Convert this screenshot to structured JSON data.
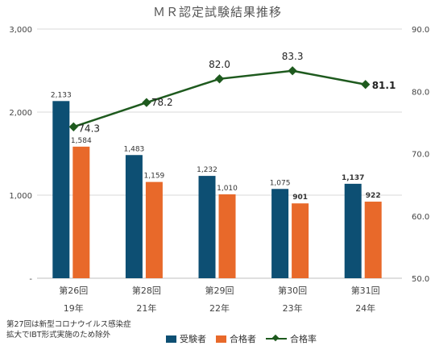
{
  "chart_data": {
    "type": "bar",
    "title": "ＭＲ認定試験結果推移",
    "categories": [
      "第26回",
      "第28回",
      "第29回",
      "第30回",
      "第31回"
    ],
    "years": [
      "19年",
      "21年",
      "22年",
      "23年",
      "24年"
    ],
    "series": [
      {
        "name": "受験者",
        "type": "bar",
        "axis": "left",
        "color": "#0d4f73",
        "values": [
          2133,
          1483,
          1232,
          1075,
          1137
        ],
        "labels": [
          "2,133",
          "1,483",
          "1,232",
          "1,075",
          "1,137"
        ],
        "bold": [
          false,
          false,
          false,
          false,
          true
        ]
      },
      {
        "name": "合格者",
        "type": "bar",
        "axis": "left",
        "color": "#e8692a",
        "values": [
          1584,
          1159,
          1010,
          901,
          922
        ],
        "labels": [
          "1,584",
          "1,159",
          "1,010",
          "901",
          "922"
        ],
        "bold": [
          false,
          false,
          false,
          true,
          true
        ]
      },
      {
        "name": "合格率",
        "type": "line",
        "axis": "right",
        "color": "#1e5a1e",
        "values": [
          74.3,
          78.2,
          82.0,
          83.3,
          81.1
        ],
        "labels": [
          "74.3",
          "78.2",
          "82.0",
          "83.3",
          "81.1"
        ],
        "bold": [
          false,
          false,
          false,
          false,
          true
        ]
      }
    ],
    "y_left": {
      "lim": [
        0,
        3000
      ],
      "ticks": [
        0,
        1000,
        2000,
        3000
      ],
      "tick_labels": [
        "-",
        "1,000",
        "2,000",
        "3,000"
      ]
    },
    "y_right": {
      "lim": [
        50,
        90
      ],
      "ticks": [
        50,
        60,
        70,
        80,
        90
      ],
      "tick_labels": [
        "50.0",
        "60.0",
        "70.0",
        "80.0",
        "90.0"
      ]
    },
    "grid": true,
    "legend": "bottom"
  },
  "note_lines": [
    "第27回は新型コロナウイルス感染症",
    "拡大でIBT形式実施のため除外"
  ]
}
